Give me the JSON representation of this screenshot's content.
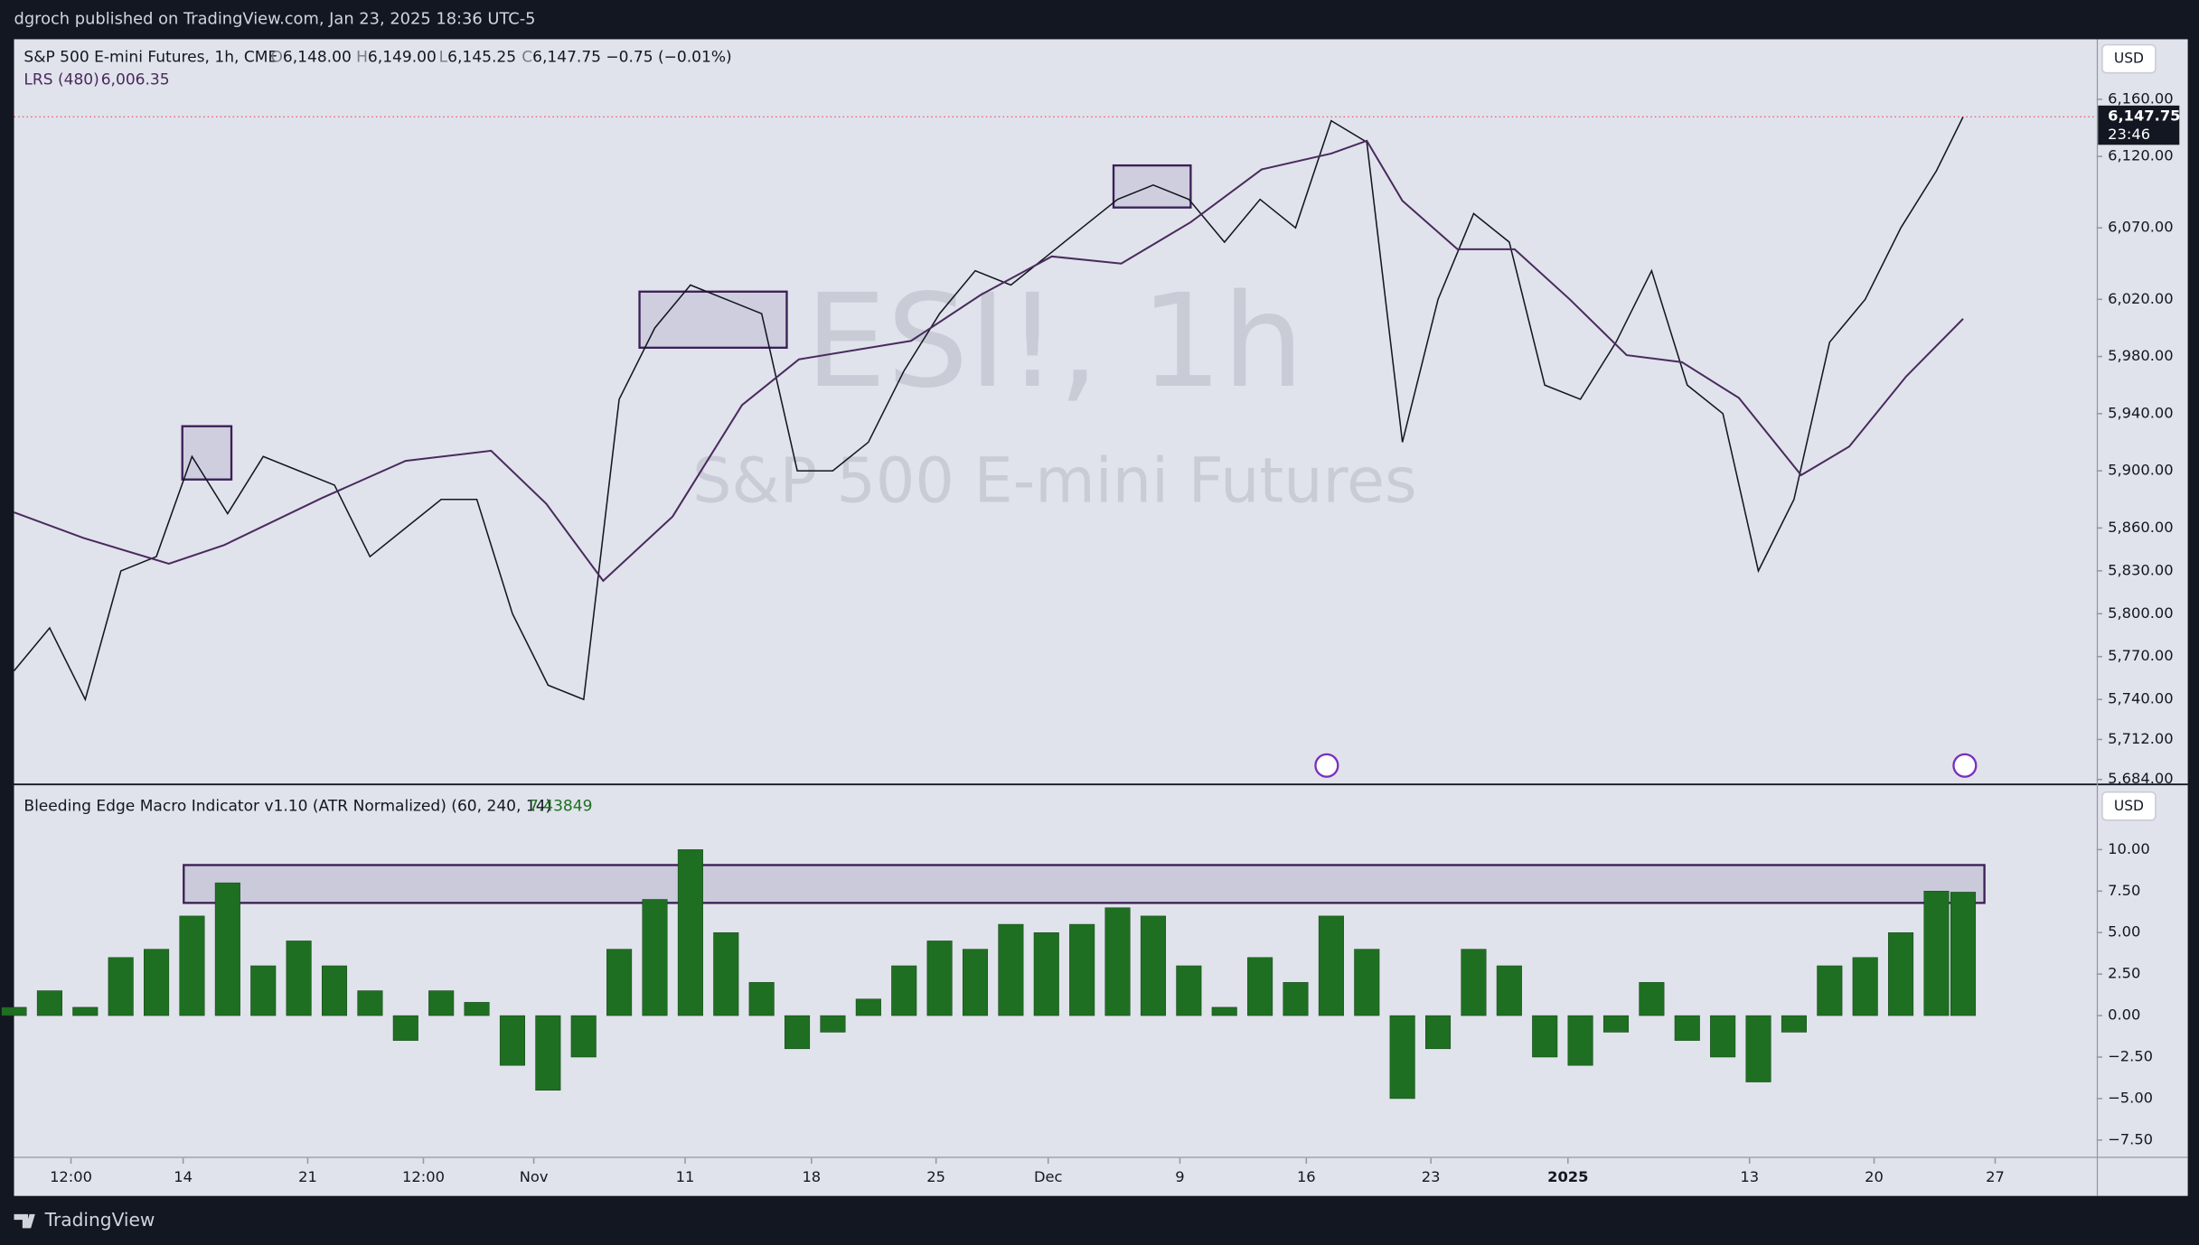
{
  "header": {
    "published": "dgroch published on TradingView.com, Jan 23, 2025 18:36 UTC-5"
  },
  "footer": {
    "brand": "TradingView"
  },
  "chart_data": [
    {
      "type": "line",
      "watermark": "ESI!, 1h",
      "watermark_subtitle": "S&P 500 E-mini Futures",
      "currency": "USD",
      "ohlc": [
        {
          "key": "O",
          "value": "6,148.00"
        },
        {
          "key": "H",
          "value": "6,149.00"
        },
        {
          "key": "L",
          "value": "6,145.25"
        },
        {
          "key": "C",
          "value": "6,147.75"
        }
      ],
      "change": "−0.75 (−0.01%)",
      "last_price_label": "6,147.75",
      "countdown": "23:46",
      "lrs_value_label": "6,006.35",
      "xlim": [
        0,
        117
      ],
      "ylim": [
        5682,
        6202
      ],
      "yticks": [
        {
          "value": 5684,
          "label": "5,684.00"
        },
        {
          "value": 5712,
          "label": "5,712.00"
        },
        {
          "value": 5740,
          "label": "5,740.00"
        },
        {
          "value": 5770,
          "label": "5,770.00"
        },
        {
          "value": 5800,
          "label": "5,800.00"
        },
        {
          "value": 5830,
          "label": "5,830.00"
        },
        {
          "value": 5860,
          "label": "5,860.00"
        },
        {
          "value": 5900,
          "label": "5,900.00"
        },
        {
          "value": 5940,
          "label": "5,940.00"
        },
        {
          "value": 5980,
          "label": "5,980.00"
        },
        {
          "value": 6020,
          "label": "6,020.00"
        },
        {
          "value": 6070,
          "label": "6,070.00"
        },
        {
          "value": 6120,
          "label": "6,120.00"
        },
        {
          "value": 6160,
          "label": "6,160.00"
        }
      ],
      "series": [
        {
          "name": "S&P 500 E-mini Futures, 1h, CME",
          "color": "#131722",
          "x": [
            0,
            2,
            4,
            6,
            8,
            10,
            12,
            14,
            16,
            18,
            20,
            22,
            24,
            26,
            28,
            30,
            32,
            34,
            36,
            38,
            40,
            42,
            44,
            46,
            48,
            50,
            52,
            54,
            56,
            58,
            60,
            62,
            64,
            66,
            68,
            70,
            72,
            74,
            76,
            78,
            80,
            82,
            84,
            86,
            88,
            90,
            92,
            94,
            96,
            98,
            100,
            102,
            104,
            106,
            108,
            109.5
          ],
          "values": [
            5760,
            5790,
            5740,
            5830,
            5840,
            5910,
            5870,
            5910,
            5900,
            5890,
            5840,
            5860,
            5880,
            5880,
            5800,
            5750,
            5740,
            5950,
            6000,
            6030,
            6020,
            6010,
            5900,
            5900,
            5920,
            5970,
            6010,
            6040,
            6030,
            6050,
            6070,
            6090,
            6100,
            6090,
            6060,
            6090,
            6070,
            6145,
            6130,
            5920,
            6020,
            6080,
            6060,
            5960,
            5950,
            5990,
            6040,
            5960,
            5940,
            5830,
            5880,
            5990,
            6020,
            6070,
            6110,
            6147.75
          ]
        },
        {
          "name": "LRS (480)",
          "color": "#4a2a5e",
          "x": [
            0,
            3.9,
            8.7,
            11.8,
            17.3,
            22.0,
            26.8,
            29.9,
            33.1,
            37.0,
            40.9,
            44.1,
            50.4,
            54.3,
            58.3,
            62.2,
            66.1,
            70.1,
            74.0,
            76.0,
            78.0,
            81.1,
            84.3,
            87.4,
            90.6,
            93.7,
            96.9,
            100.4,
            103.1,
            106.3,
            109.5
          ],
          "values": [
            5871,
            5853,
            5835,
            5848,
            5881,
            5907,
            5914,
            5877,
            5823,
            5868,
            5946,
            5978,
            5991,
            6023,
            6050,
            6045,
            6074,
            6111,
            6122,
            6131,
            6089,
            6055,
            6055,
            6020,
            5981,
            5976,
            5951,
            5897,
            5917,
            5966,
            6006.35
          ]
        }
      ]
    },
    {
      "type": "bar",
      "title": "Bleeding Edge Macro Indicator v1.10 (ATR Normalized) (60, 240, 14)",
      "value_label": "7.43849",
      "currency": "USD",
      "color": "#1f6f22",
      "xlim": [
        0,
        117
      ],
      "ylim": [
        -8.5,
        13.8
      ],
      "yticks": [
        {
          "value": 10,
          "label": "10.00"
        },
        {
          "value": 7.5,
          "label": "7.50"
        },
        {
          "value": 5,
          "label": "5.00"
        },
        {
          "value": 2.5,
          "label": "2.50"
        },
        {
          "value": 0,
          "label": "0.00"
        },
        {
          "value": -2.5,
          "label": "−2.50"
        },
        {
          "value": -5,
          "label": "−5.00"
        },
        {
          "value": -7.5,
          "label": "−7.50"
        }
      ],
      "xticks": [
        {
          "value": 3.2,
          "label": "12:00"
        },
        {
          "value": 9.5,
          "label": "14"
        },
        {
          "value": 16.5,
          "label": "21"
        },
        {
          "value": 23.0,
          "label": "12:00"
        },
        {
          "value": 29.2,
          "label": "Nov"
        },
        {
          "value": 37.7,
          "label": "11"
        },
        {
          "value": 44.8,
          "label": "18"
        },
        {
          "value": 51.8,
          "label": "25"
        },
        {
          "value": 58.1,
          "label": "Dec"
        },
        {
          "value": 65.5,
          "label": "9"
        },
        {
          "value": 72.6,
          "label": "16"
        },
        {
          "value": 79.6,
          "label": "23"
        },
        {
          "value": 87.3,
          "label": "2025"
        },
        {
          "value": 97.5,
          "label": "13"
        },
        {
          "value": 104.5,
          "label": "20"
        },
        {
          "value": 111.3,
          "label": "27"
        }
      ],
      "x": [
        0,
        2,
        4,
        6,
        8,
        10,
        12,
        14,
        16,
        18,
        20,
        22,
        24,
        26,
        28,
        30,
        32,
        34,
        36,
        38,
        40,
        42,
        44,
        46,
        48,
        50,
        52,
        54,
        56,
        58,
        60,
        62,
        64,
        66,
        68,
        70,
        72,
        74,
        76,
        78,
        80,
        82,
        84,
        86,
        88,
        90,
        92,
        94,
        96,
        98,
        100,
        102,
        104,
        106,
        108,
        109.5
      ],
      "values": [
        0.5,
        1.5,
        0.5,
        3.5,
        4,
        6,
        8,
        3,
        4.5,
        3,
        1.5,
        -1.5,
        1.5,
        0.8,
        -3,
        -4.5,
        -2.5,
        4,
        7,
        10,
        5,
        2,
        -2,
        -1,
        1,
        3,
        4.5,
        4,
        5.5,
        5,
        5.5,
        6.5,
        6,
        3,
        0.5,
        3.5,
        2,
        6,
        4,
        -5,
        -2,
        4,
        3,
        -2.5,
        -3,
        -1,
        2,
        -1.5,
        -2.5,
        -4,
        -1,
        3,
        3.5,
        5,
        7.5,
        7.43849
      ]
    }
  ]
}
